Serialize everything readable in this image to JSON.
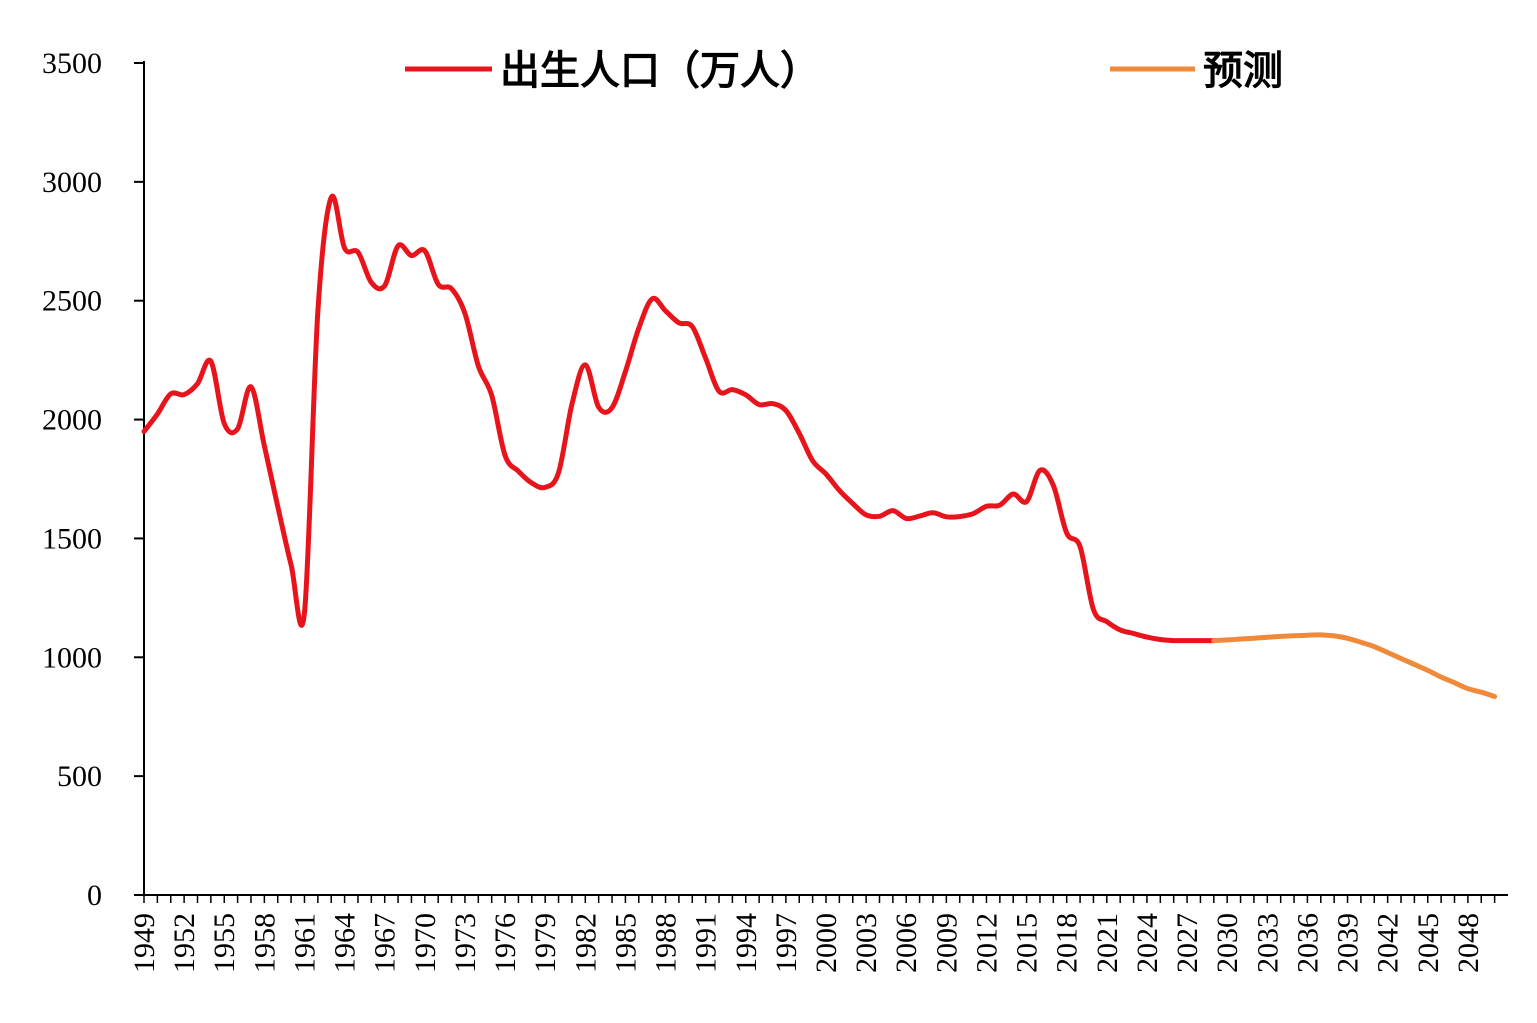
{
  "chart_data": {
    "type": "line",
    "title": "",
    "xlabel": "",
    "ylabel": "",
    "ylim": [
      0,
      3500
    ],
    "yticks": [
      "0",
      "500",
      "1000",
      "1500",
      "2000",
      "2500",
      "3000",
      "3500"
    ],
    "xtick_labels": [
      "1949",
      "1952",
      "1955",
      "1958",
      "1961",
      "1964",
      "1967",
      "1970",
      "1973",
      "1976",
      "1979",
      "1982",
      "1985",
      "1988",
      "1991",
      "1994",
      "1997",
      "2000",
      "2003",
      "2006",
      "2009",
      "2012",
      "2015",
      "2018",
      "2021",
      "2024",
      "2027",
      "2030",
      "2033",
      "2036",
      "2039",
      "2042",
      "2045",
      "2048"
    ],
    "grid": false,
    "legend_position": "top",
    "series": [
      {
        "name": "出生人口（万人）",
        "color": "#e8141c",
        "x": [
          1949,
          1950,
          1951,
          1952,
          1953,
          1954,
          1955,
          1956,
          1957,
          1958,
          1959,
          1960,
          1961,
          1962,
          1963,
          1964,
          1965,
          1966,
          1967,
          1968,
          1969,
          1970,
          1971,
          1972,
          1973,
          1974,
          1975,
          1976,
          1977,
          1978,
          1979,
          1980,
          1981,
          1982,
          1983,
          1984,
          1985,
          1986,
          1987,
          1988,
          1989,
          1990,
          1991,
          1992,
          1993,
          1994,
          1995,
          1996,
          1997,
          1998,
          1999,
          2000,
          2001,
          2002,
          2003,
          2004,
          2005,
          2006,
          2007,
          2008,
          2009,
          2010,
          2011,
          2012,
          2013,
          2014,
          2015,
          2016,
          2017,
          2018,
          2019,
          2020,
          2021,
          2022,
          2023,
          2024,
          2025,
          2026,
          2027,
          2028,
          2029
        ],
        "y": [
          1950,
          2023,
          2108,
          2105,
          2151,
          2245,
          1984,
          1961,
          2138,
          1889,
          1635,
          1389,
          1189,
          2451,
          2934,
          2721,
          2704,
          2577,
          2563,
          2731,
          2690,
          2710,
          2569,
          2550,
          2447,
          2226,
          2102,
          1849,
          1783,
          1733,
          1715,
          1776,
          2064,
          2230,
          2052,
          2050,
          2202,
          2384,
          2508,
          2457,
          2407,
          2391,
          2258,
          2119,
          2126,
          2104,
          2063,
          2067,
          2038,
          1942,
          1827,
          1771,
          1702,
          1647,
          1599,
          1593,
          1617,
          1584,
          1594,
          1608,
          1591,
          1592,
          1604,
          1635,
          1640,
          1687,
          1655,
          1786,
          1723,
          1523,
          1465,
          1200,
          1150,
          1115,
          1100,
          1085,
          1075,
          1070,
          1070,
          1070,
          1070
        ]
      },
      {
        "name": "预测",
        "color": "#f08a3a",
        "x": [
          2029,
          2030,
          2031,
          2032,
          2033,
          2034,
          2035,
          2036,
          2037,
          2038,
          2039,
          2040,
          2041,
          2042,
          2043,
          2044,
          2045,
          2046,
          2047,
          2048,
          2049,
          2050
        ],
        "y": [
          1070,
          1073,
          1077,
          1080,
          1084,
          1088,
          1091,
          1093,
          1094,
          1090,
          1080,
          1063,
          1045,
          1020,
          995,
          970,
          945,
          917,
          893,
          868,
          853,
          835
        ]
      }
    ]
  }
}
